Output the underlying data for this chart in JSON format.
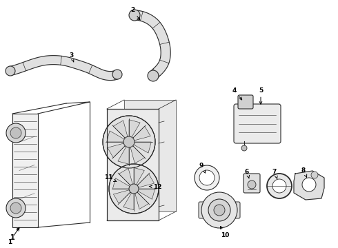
{
  "background_color": "#ffffff",
  "line_color": "#2a2a2a",
  "label_color": "#000000",
  "fig_w": 4.9,
  "fig_h": 3.6,
  "dpi": 100
}
